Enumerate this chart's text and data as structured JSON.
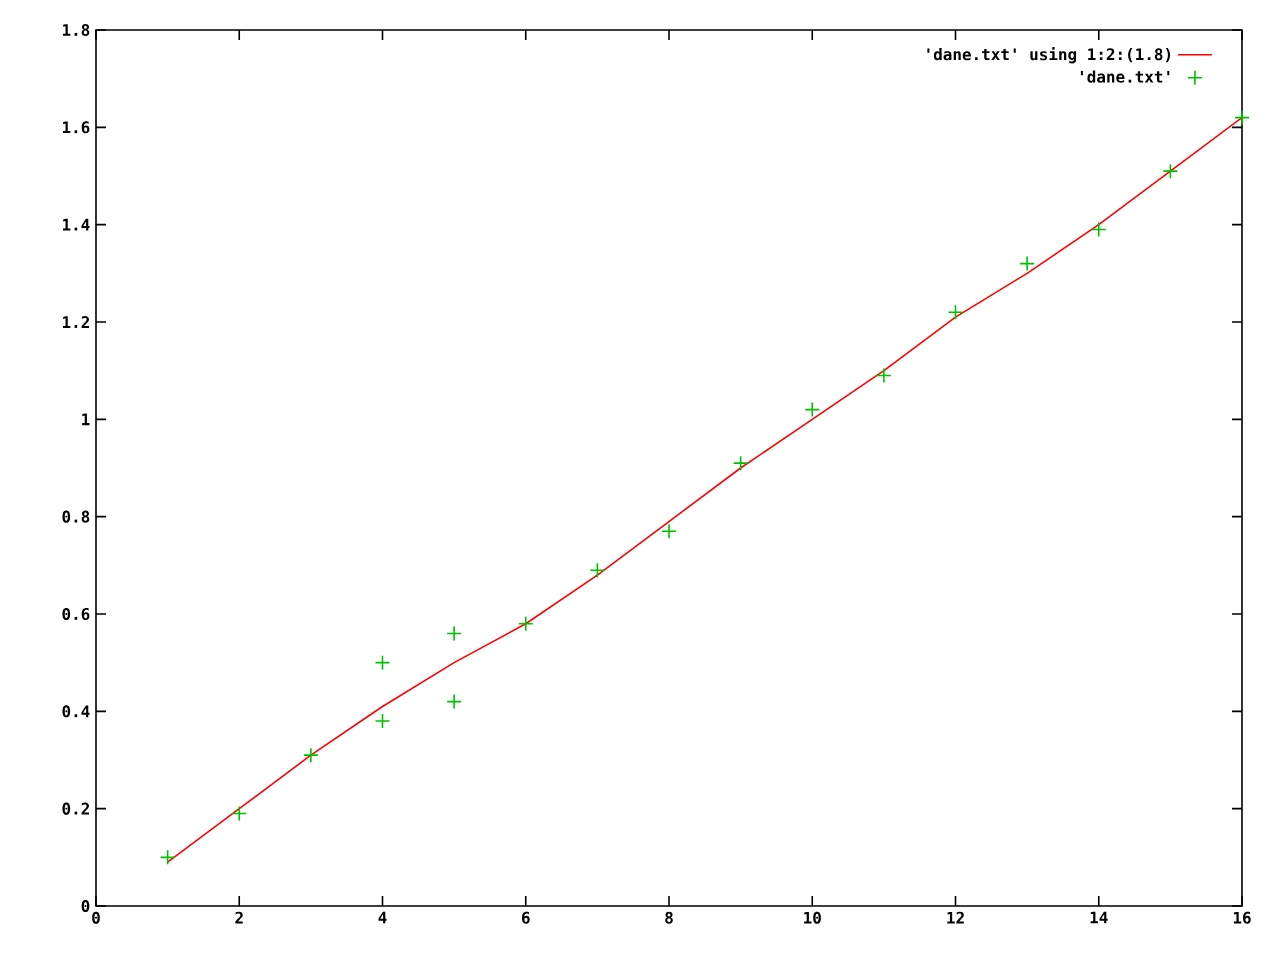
{
  "chart_data": {
    "type": "scatter",
    "xlim": [
      0,
      16
    ],
    "ylim": [
      0,
      1.8
    ],
    "xticks": [
      0,
      2,
      4,
      6,
      8,
      10,
      12,
      14,
      16
    ],
    "yticks": [
      0,
      0.2,
      0.4,
      0.6,
      0.8,
      1,
      1.2,
      1.4,
      1.6,
      1.8
    ],
    "grid": false,
    "legend": "top right",
    "series": [
      {
        "name": "'dane.txt' using 1:2:(1.8)",
        "type": "line",
        "color": "#ff0000",
        "marker": "none",
        "line_style": "solid",
        "x": [
          1,
          2,
          3,
          4,
          5,
          6,
          7,
          8,
          9,
          10,
          11,
          12,
          13,
          14,
          15,
          16
        ],
        "values": [
          0.09,
          0.2,
          0.31,
          0.41,
          0.5,
          0.58,
          0.68,
          0.79,
          0.9,
          1.0,
          1.1,
          1.21,
          1.3,
          1.4,
          1.51,
          1.62
        ]
      },
      {
        "name": "'dane.txt'",
        "color": "#00c000",
        "marker": "cross",
        "x": [
          1,
          2,
          3,
          4,
          4,
          5,
          5,
          6,
          7,
          8,
          9,
          10,
          11,
          12,
          13,
          14,
          15,
          16
        ],
        "values": [
          0.1,
          0.19,
          0.31,
          0.5,
          0.38,
          0.56,
          0.42,
          0.58,
          0.69,
          0.77,
          0.91,
          1.02,
          1.09,
          1.22,
          1.32,
          1.39,
          1.51,
          1.62
        ]
      }
    ]
  }
}
